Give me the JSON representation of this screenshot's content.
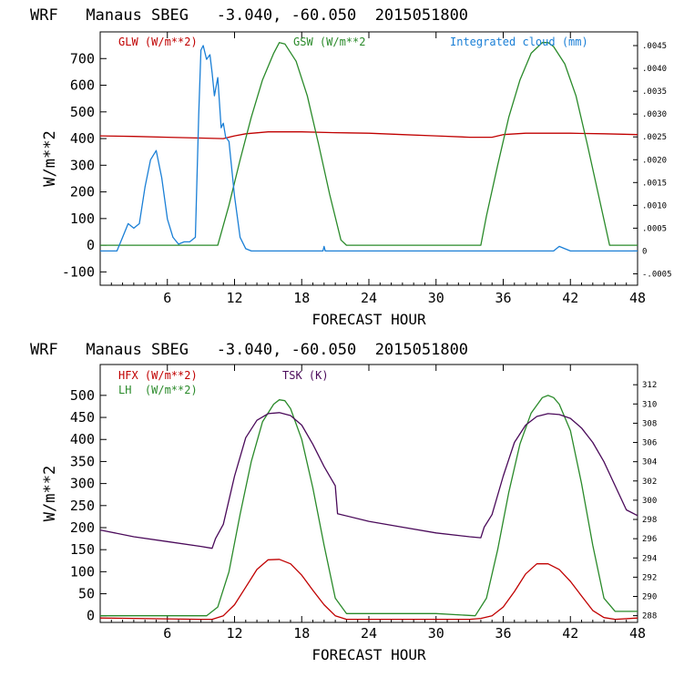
{
  "chart_data": [
    {
      "type": "line",
      "title": "WRF   Manaus SBEG   -3.040, -60.050  2015051800",
      "xlabel": "FORECAST HOUR",
      "ylabel": "W/m**2",
      "xlim": [
        0,
        48
      ],
      "ylim": [
        -150,
        800
      ],
      "x_ticks": [
        6,
        12,
        18,
        24,
        30,
        36,
        42,
        48
      ],
      "y_ticks": [
        -100,
        0,
        100,
        200,
        300,
        400,
        500,
        600,
        700
      ],
      "y2lim": [
        -0.00075,
        0.0048
      ],
      "y2_ticks": [
        -0.0005,
        0,
        0.0005,
        0.001,
        0.0015,
        0.002,
        0.0025,
        0.003,
        0.0035,
        0.004,
        0.0045
      ],
      "y2_tick_labels": [
        "-.0005",
        "0",
        ".0005",
        ".0010",
        ".0015",
        ".0020",
        ".0025",
        ".0030",
        ".0035",
        ".0040",
        ".0045"
      ],
      "series": [
        {
          "name": "GLW (W/m**2)",
          "color": "#c00000",
          "axis": "left",
          "x": [
            0,
            3,
            6,
            9,
            11,
            12,
            13,
            15,
            18,
            21,
            24,
            27,
            30,
            33,
            35,
            36,
            38,
            40,
            42,
            45,
            48
          ],
          "y": [
            410,
            408,
            405,
            402,
            400,
            410,
            418,
            425,
            425,
            422,
            420,
            415,
            410,
            405,
            405,
            415,
            420,
            420,
            420,
            418,
            415
          ]
        },
        {
          "name": "GSW (W/m**2",
          "color": "#2a8a2a",
          "axis": "left",
          "x": [
            0,
            10.5,
            11.5,
            12.5,
            13.5,
            14.5,
            15.5,
            16,
            16.5,
            17.5,
            18.5,
            19.5,
            20.5,
            21.5,
            22,
            34,
            34.5,
            35.5,
            36.5,
            37.5,
            38.5,
            39.5,
            40,
            40.5,
            41.5,
            42.5,
            43.5,
            44.5,
            45.5,
            48
          ],
          "y": [
            0,
            0,
            150,
            320,
            480,
            620,
            720,
            760,
            755,
            690,
            560,
            380,
            190,
            20,
            0,
            0,
            110,
            300,
            480,
            620,
            720,
            760,
            760,
            745,
            680,
            560,
            380,
            190,
            0,
            0
          ]
        },
        {
          "name": "Integrated cloud (mm)",
          "color": "#1a7fd6",
          "axis": "right",
          "x": [
            0,
            1.5,
            2,
            2.5,
            3,
            3.5,
            4,
            4.5,
            5,
            5.5,
            6,
            6.5,
            7,
            7.5,
            8,
            8.5,
            8.8,
            9,
            9.2,
            9.5,
            9.8,
            10,
            10.2,
            10.5,
            10.8,
            11,
            11.2,
            11.5,
            12,
            12.5,
            13,
            13.5,
            19.9,
            20,
            20.1,
            40.5,
            41,
            41.5,
            42,
            48
          ],
          "y": [
            0,
            0,
            0.0003,
            0.0006,
            0.0005,
            0.0006,
            0.0014,
            0.002,
            0.0022,
            0.0016,
            0.0007,
            0.0003,
            0.00015,
            0.0002,
            0.0002,
            0.0003,
            0.003,
            0.0044,
            0.0045,
            0.0042,
            0.0043,
            0.0039,
            0.0034,
            0.0038,
            0.0027,
            0.0028,
            0.0025,
            0.0024,
            0.0012,
            0.0003,
            5e-05,
            0,
            0,
            0.0001,
            0,
            0,
            0.0001,
            5e-05,
            0,
            0
          ]
        }
      ]
    },
    {
      "type": "line",
      "title": "WRF   Manaus SBEG   -3.040, -60.050  2015051800",
      "xlabel": "FORECAST HOUR",
      "ylabel": "W/m**2",
      "xlim": [
        0,
        48
      ],
      "ylim": [
        -15,
        570
      ],
      "x_ticks": [
        6,
        12,
        18,
        24,
        30,
        36,
        42,
        48
      ],
      "y_ticks": [
        0,
        50,
        100,
        150,
        200,
        250,
        300,
        350,
        400,
        450,
        500
      ],
      "y2lim": [
        287.3,
        314.1
      ],
      "y2_ticks": [
        288,
        290,
        292,
        294,
        296,
        298,
        300,
        302,
        304,
        306,
        308,
        310,
        312
      ],
      "y2_tick_labels": [
        "288",
        "290",
        "292",
        "294",
        "296",
        "298",
        "300",
        "302",
        "304",
        "306",
        "308",
        "310",
        "312"
      ],
      "series": [
        {
          "name": "HFX (W/m**2)",
          "color": "#c00000",
          "axis": "left",
          "x": [
            0,
            3,
            6,
            9,
            10,
            11,
            12,
            13,
            14,
            15,
            16,
            17,
            18,
            19,
            20,
            21,
            22,
            24,
            27,
            30,
            33,
            34,
            35,
            36,
            37,
            38,
            39,
            40,
            41,
            42,
            43,
            44,
            45,
            46,
            48
          ],
          "y": [
            -5,
            -6,
            -7,
            -8,
            -8,
            0,
            25,
            65,
            105,
            127,
            128,
            118,
            92,
            58,
            25,
            0,
            -8,
            -8,
            -8,
            -8,
            -8,
            -6,
            0,
            20,
            55,
            95,
            118,
            118,
            105,
            78,
            45,
            12,
            -4,
            -8,
            -5
          ]
        },
        {
          "name": "LH  (W/m**2)",
          "color": "#2a8a2a",
          "axis": "left",
          "x": [
            0,
            9.5,
            10.5,
            11.5,
            12.5,
            13.5,
            14.5,
            15.5,
            16,
            16.5,
            17,
            18,
            19,
            20,
            21,
            22,
            24,
            30,
            33.5,
            34.5,
            35.5,
            36.5,
            37.5,
            38.5,
            39.5,
            40,
            40.5,
            41,
            42,
            43,
            44,
            45,
            46,
            47,
            48
          ],
          "y": [
            0,
            0,
            20,
            100,
            230,
            350,
            440,
            480,
            490,
            488,
            470,
            400,
            290,
            160,
            40,
            5,
            5,
            5,
            0,
            40,
            150,
            280,
            390,
            460,
            495,
            500,
            495,
            480,
            420,
            300,
            160,
            40,
            10,
            10,
            10
          ]
        },
        {
          "name": "TSK (K)",
          "color": "#4a0a5a",
          "axis": "right",
          "x": [
            0,
            3,
            6,
            9,
            10,
            10.3,
            11,
            12,
            13,
            14,
            15,
            16,
            17,
            18,
            19,
            20,
            21,
            21.2,
            24,
            27,
            30,
            33,
            34,
            34.3,
            35,
            36,
            37,
            38,
            39,
            40,
            41,
            42,
            43,
            44,
            45,
            46,
            47,
            48
          ],
          "y": [
            296.9,
            296.2,
            295.7,
            295.2,
            295.0,
            296.0,
            297.5,
            302.5,
            306.5,
            308.3,
            309.0,
            309.1,
            308.8,
            307.8,
            305.8,
            303.5,
            301.5,
            298.6,
            297.8,
            297.2,
            296.6,
            296.2,
            296.1,
            297.2,
            298.5,
            302.5,
            306.0,
            307.8,
            308.7,
            309.0,
            308.9,
            308.5,
            307.5,
            306.0,
            304.0,
            301.5,
            299.0,
            298.4
          ]
        }
      ]
    }
  ]
}
